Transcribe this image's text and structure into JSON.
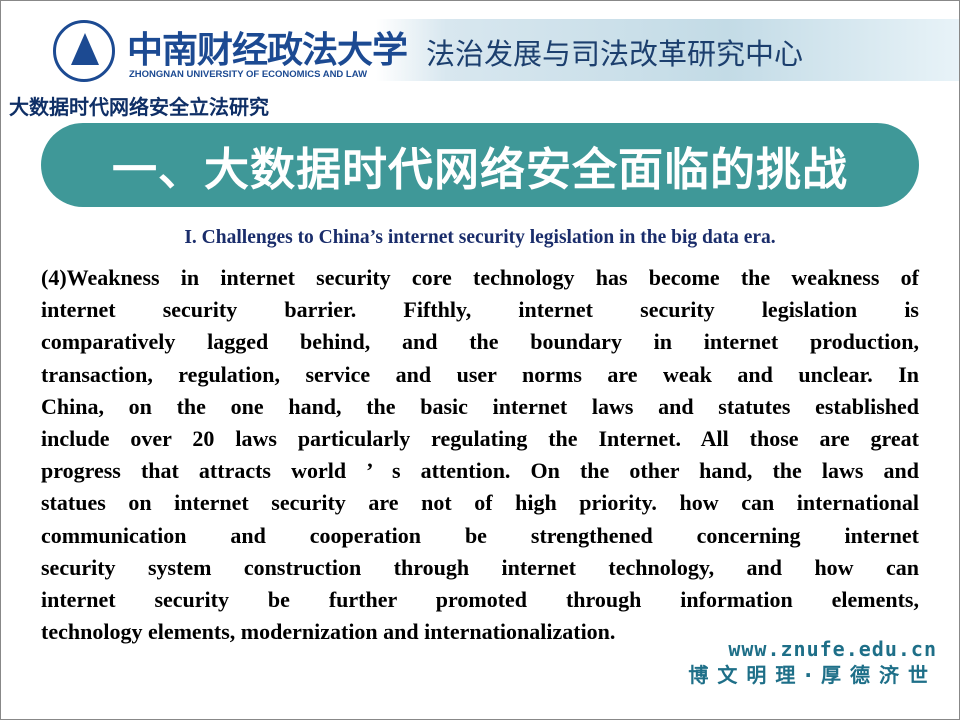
{
  "header": {
    "university_cn": "中南财经政法大学",
    "university_en": "ZHONGNAN UNIVERSITY OF ECONOMICS AND LAW",
    "center_name": "法治发展与司法改革研究中心",
    "project_title": "大数据时代网络安全立法研究"
  },
  "slide": {
    "title": "一、大数据时代网络安全面临的挑战",
    "subtitle": "I. Challenges to China’s internet security legislation in the big data era.",
    "body_lines": [
      "(4)Weakness in internet security core technology has become the weakness of",
      "internet security barrier. Fifthly, internet security legislation is",
      "comparatively lagged behind, and the boundary in internet production,",
      "transaction, regulation, service and user norms are weak and unclear. In",
      "China, on the one hand, the basic internet laws and statutes established",
      "include over 20 laws particularly regulating the Internet. All those are great",
      "progress that attracts world ’ s attention. On the other hand, the laws and",
      "statues on internet security are not of high priority. how can international",
      "communication and cooperation  be strengthened concerning internet",
      "security system construction through internet technology, and how can",
      "internet security be further promoted through information elements,",
      "technology elements, modernization and internationalization."
    ]
  },
  "footer": {
    "url": "www.znufe.edu.cn",
    "motto": "博文明理·厚德济世"
  },
  "colors": {
    "title_bg": "#3f9898",
    "navy": "#1a2d6b",
    "footer": "#1e6f88"
  }
}
